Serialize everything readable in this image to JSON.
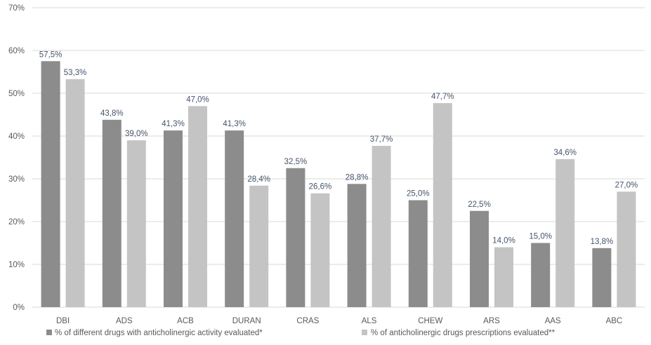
{
  "chart_data": {
    "type": "bar",
    "title": "",
    "xlabel": "",
    "ylabel": "",
    "ylim": [
      0,
      70
    ],
    "y_ticks": [
      "0%",
      "10%",
      "20%",
      "30%",
      "40%",
      "50%",
      "60%",
      "70%"
    ],
    "grid": true,
    "legend_position": "bottom",
    "categories": [
      "DBI",
      "ADS",
      "ACB",
      "DURAN",
      "CRAS",
      "ALS",
      "CHEW",
      "ARS",
      "AAS",
      "ABC"
    ],
    "series": [
      {
        "name": "% of different drugs with anticholinergic activity evaluated*",
        "color": "#8c8c8c",
        "values": [
          57.5,
          43.8,
          41.3,
          41.3,
          32.5,
          28.8,
          25.0,
          22.5,
          15.0,
          13.8
        ],
        "labels": [
          "57,5%",
          "43,8%",
          "41,3%",
          "41,3%",
          "32,5%",
          "28,8%",
          "25,0%",
          "22,5%",
          "15,0%",
          "13,8%"
        ]
      },
      {
        "name": "% of anticholinergic drugs prescriptions evaluated**",
        "color": "#c4c4c4",
        "values": [
          53.3,
          39.0,
          47.0,
          28.4,
          26.6,
          37.7,
          47.7,
          14.0,
          34.6,
          27.0
        ],
        "labels": [
          "53,3%",
          "39,0%",
          "47,0%",
          "28,4%",
          "26,6%",
          "37,7%",
          "47,7%",
          "14,0%",
          "34,6%",
          "27,0%"
        ]
      }
    ]
  }
}
